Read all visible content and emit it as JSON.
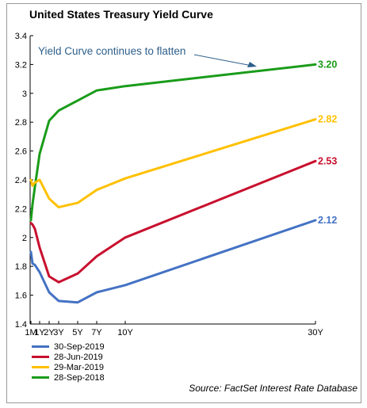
{
  "chart_data": {
    "type": "line",
    "title": "United States Treasury Yield Curve",
    "annotation": "Yield Curve continues to flatten",
    "source": "Source: FactSet Interest Rate Database",
    "xlabel": "",
    "ylabel": "",
    "ylim": [
      1.4,
      3.4
    ],
    "y_ticks": [
      1.4,
      1.6,
      1.8,
      2.0,
      2.2,
      2.4,
      2.6,
      2.8,
      3.0,
      3.2,
      3.4
    ],
    "y_tick_labels": [
      "1.4",
      "1.6",
      "1.8",
      "2",
      "2.2",
      "2.4",
      "2.6",
      "2.8",
      "3",
      "3.2",
      "3.4"
    ],
    "xlim_years": [
      0,
      30
    ],
    "x_ticks": [
      {
        "label": "1M",
        "years": 0.083
      },
      {
        "label": "1Y",
        "years": 1
      },
      {
        "label": "2Y",
        "years": 2
      },
      {
        "label": "3Y",
        "years": 3
      },
      {
        "label": "5Y",
        "years": 5
      },
      {
        "label": "7Y",
        "years": 7
      },
      {
        "label": "10Y",
        "years": 10
      },
      {
        "label": "30Y",
        "years": 30
      }
    ],
    "x_maturities_years": [
      0.083,
      0.25,
      0.5,
      1,
      2,
      3,
      5,
      7,
      10,
      30
    ],
    "grid": false,
    "legend_position": "bottom-left",
    "series": [
      {
        "name": "30-Sep-2019",
        "color": "#4472c4",
        "values": [
          1.9,
          1.82,
          1.81,
          1.76,
          1.62,
          1.56,
          1.55,
          1.62,
          1.67,
          2.12
        ],
        "end_label": "2.12"
      },
      {
        "name": "28-Jun-2019",
        "color": "#c8102e",
        "values": [
          2.1,
          2.09,
          2.06,
          1.93,
          1.73,
          1.69,
          1.75,
          1.87,
          2.0,
          2.53
        ],
        "end_label": "2.53"
      },
      {
        "name": "29-Mar-2019",
        "color": "#ffc000",
        "values": [
          2.4,
          2.36,
          2.38,
          2.4,
          2.27,
          2.21,
          2.24,
          2.33,
          2.41,
          2.82
        ],
        "end_label": "2.82"
      },
      {
        "name": "28-Sep-2018",
        "color": "#1a9c1a",
        "values": [
          2.12,
          2.23,
          2.35,
          2.58,
          2.81,
          2.88,
          2.95,
          3.02,
          3.05,
          3.2
        ],
        "end_label": "3.20"
      }
    ]
  }
}
